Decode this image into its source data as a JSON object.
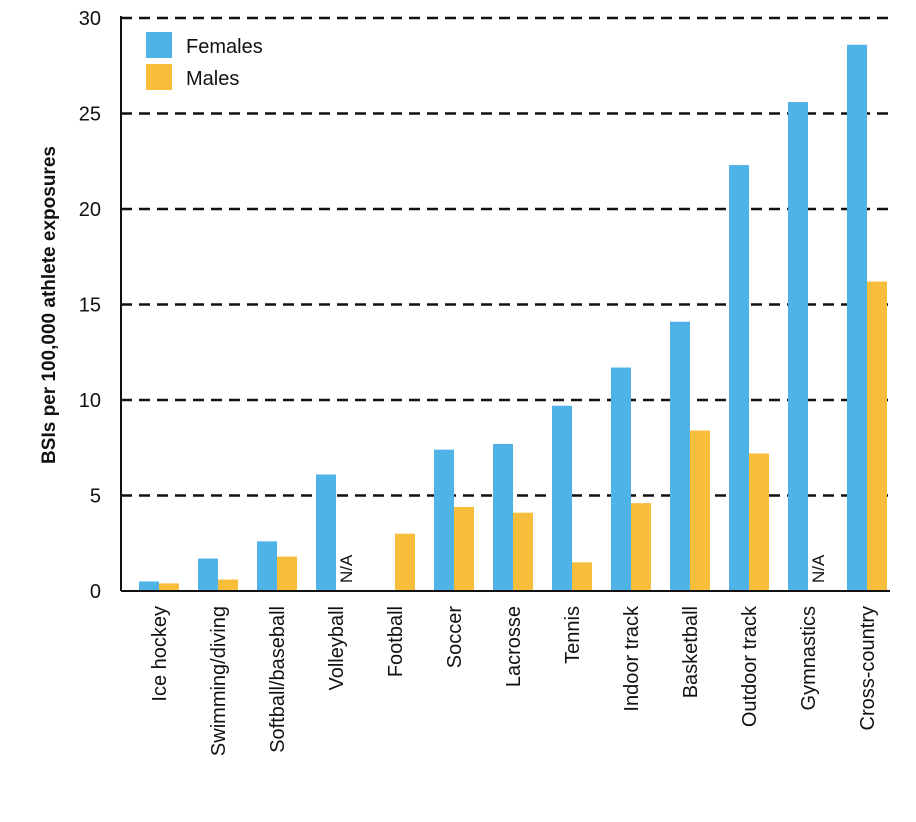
{
  "chart_data": {
    "type": "bar",
    "ylabel": "BSIs per 100,000 athlete exposures",
    "ylim": [
      0,
      30
    ],
    "yticks": [
      0,
      5,
      10,
      15,
      20,
      25,
      30
    ],
    "grid": "horizontal dashed",
    "legend_position": "top-left",
    "categories": [
      "Ice hockey",
      "Swimming/diving",
      "Softball/baseball",
      "Volleyball",
      "Football",
      "Soccer",
      "Lacrosse",
      "Tennis",
      "Indoor track",
      "Basketball",
      "Outdoor track",
      "Gymnastics",
      "Cross-country"
    ],
    "series": [
      {
        "name": "Females",
        "color": "#4FB3E8",
        "values": [
          0.5,
          1.7,
          2.6,
          6.1,
          null,
          7.4,
          7.7,
          9.7,
          11.7,
          14.1,
          22.3,
          25.6,
          28.6
        ]
      },
      {
        "name": "Males",
        "color": "#F6BE3B",
        "values": [
          0.4,
          0.6,
          1.8,
          null,
          3.0,
          4.4,
          4.1,
          1.5,
          4.6,
          8.4,
          7.2,
          null,
          16.2
        ]
      }
    ],
    "annotations": [
      {
        "category": "Volleyball",
        "series": "Males",
        "text": "N/A"
      },
      {
        "category": "Gymnastics",
        "series": "Males",
        "text": "N/A"
      }
    ]
  }
}
